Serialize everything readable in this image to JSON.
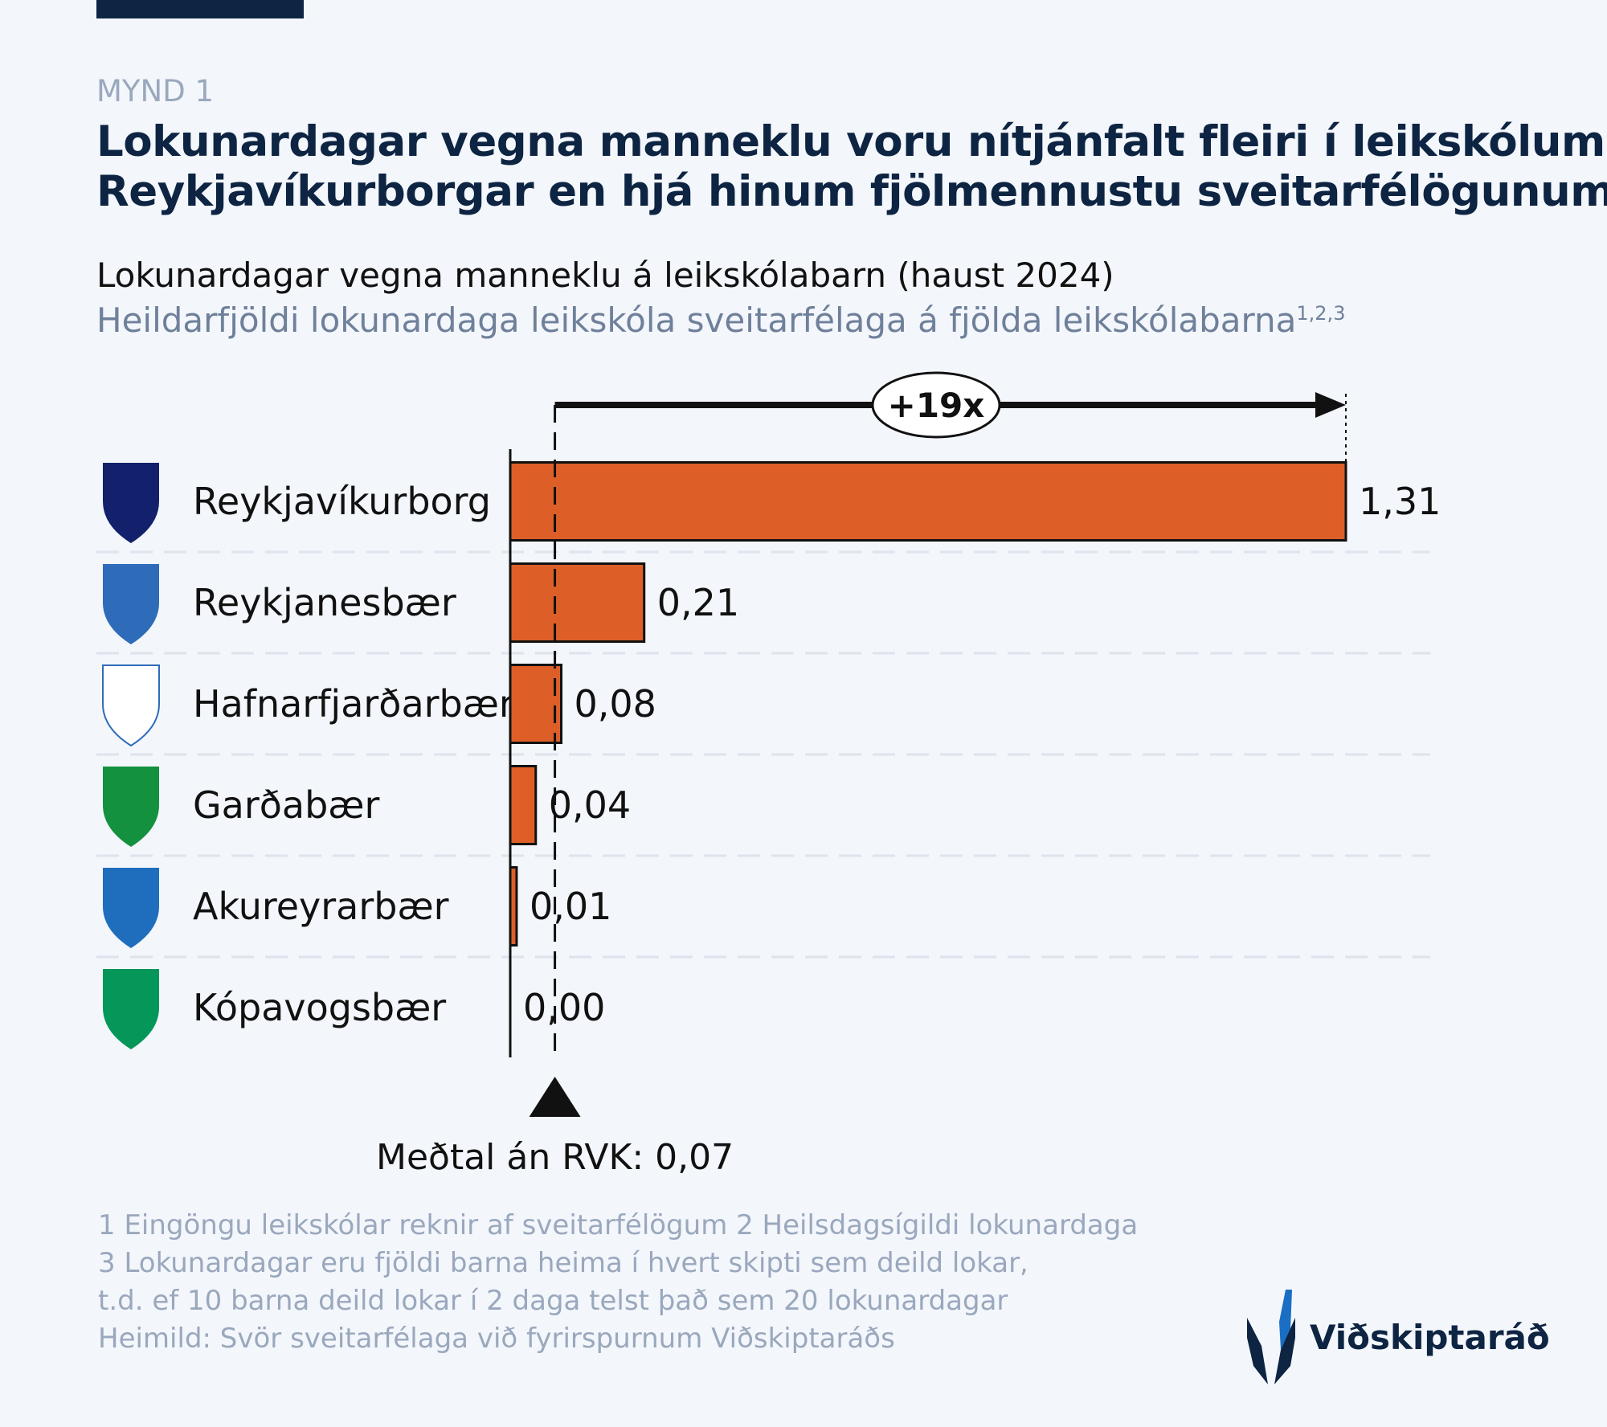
{
  "figure_label": "MYND 1",
  "title_lines": [
    "Lokunardagar vegna manneklu voru nítjánfalt fleiri í leikskólum",
    "Reykjavíkurborgar en hjá hinum fjölmennustu sveitarfélögunum"
  ],
  "subtitle": "Lokunardagar vegna manneklu á leikskólabarn (haust 2024)",
  "subtitle2": "Heildarfjöldi lokunardaga leikskóla sveitarfélaga á fjölda leikskólabarna",
  "subtitle2_sup": "1,2,3",
  "colors": {
    "bar": "#dd5f27",
    "navy": "#0d2442",
    "grid": "#dde4ee"
  },
  "chart_data": {
    "type": "bar",
    "orientation": "horizontal",
    "categories": [
      "Reykjavíkurborg",
      "Reykjanesbær",
      "Hafnarfjarðarbær",
      "Garðabær",
      "Akureyrarbær",
      "Kópavogsbær"
    ],
    "values": [
      1.31,
      0.21,
      0.08,
      0.04,
      0.01,
      0.0
    ],
    "value_labels": [
      "1,31",
      "0,21",
      "0,08",
      "0,04",
      "0,01",
      "0,00"
    ],
    "category_icons": [
      "reykjavik-coat-of-arms-icon",
      "reykjanesbaer-coat-of-arms-icon",
      "hafnarfjordur-coat-of-arms-icon",
      "gardabaer-coat-of-arms-icon",
      "akureyri-coat-of-arms-icon",
      "kopavogur-coat-of-arms-icon"
    ],
    "xlim": [
      0,
      1.31
    ],
    "reference_line": {
      "value": 0.07,
      "label": "Meðtal án RVK: 0,07"
    },
    "annotation": "+19x",
    "grid": false
  },
  "footnotes": [
    "1 Eingöngu leikskólar reknir af sveitarfélögum 2 Heilsdagsígildi lokunardaga",
    "3 Lokunardagar eru fjöldi barna heima í hvert skipti sem deild lokar,",
    "t.d. ef 10 barna deild lokar í 2 daga telst það sem 20 lokunardagar",
    "Heimild: Svör sveitarfélaga við fyrirspurnum Viðskiptaráðs"
  ],
  "brand": "Viðskiptaráð"
}
